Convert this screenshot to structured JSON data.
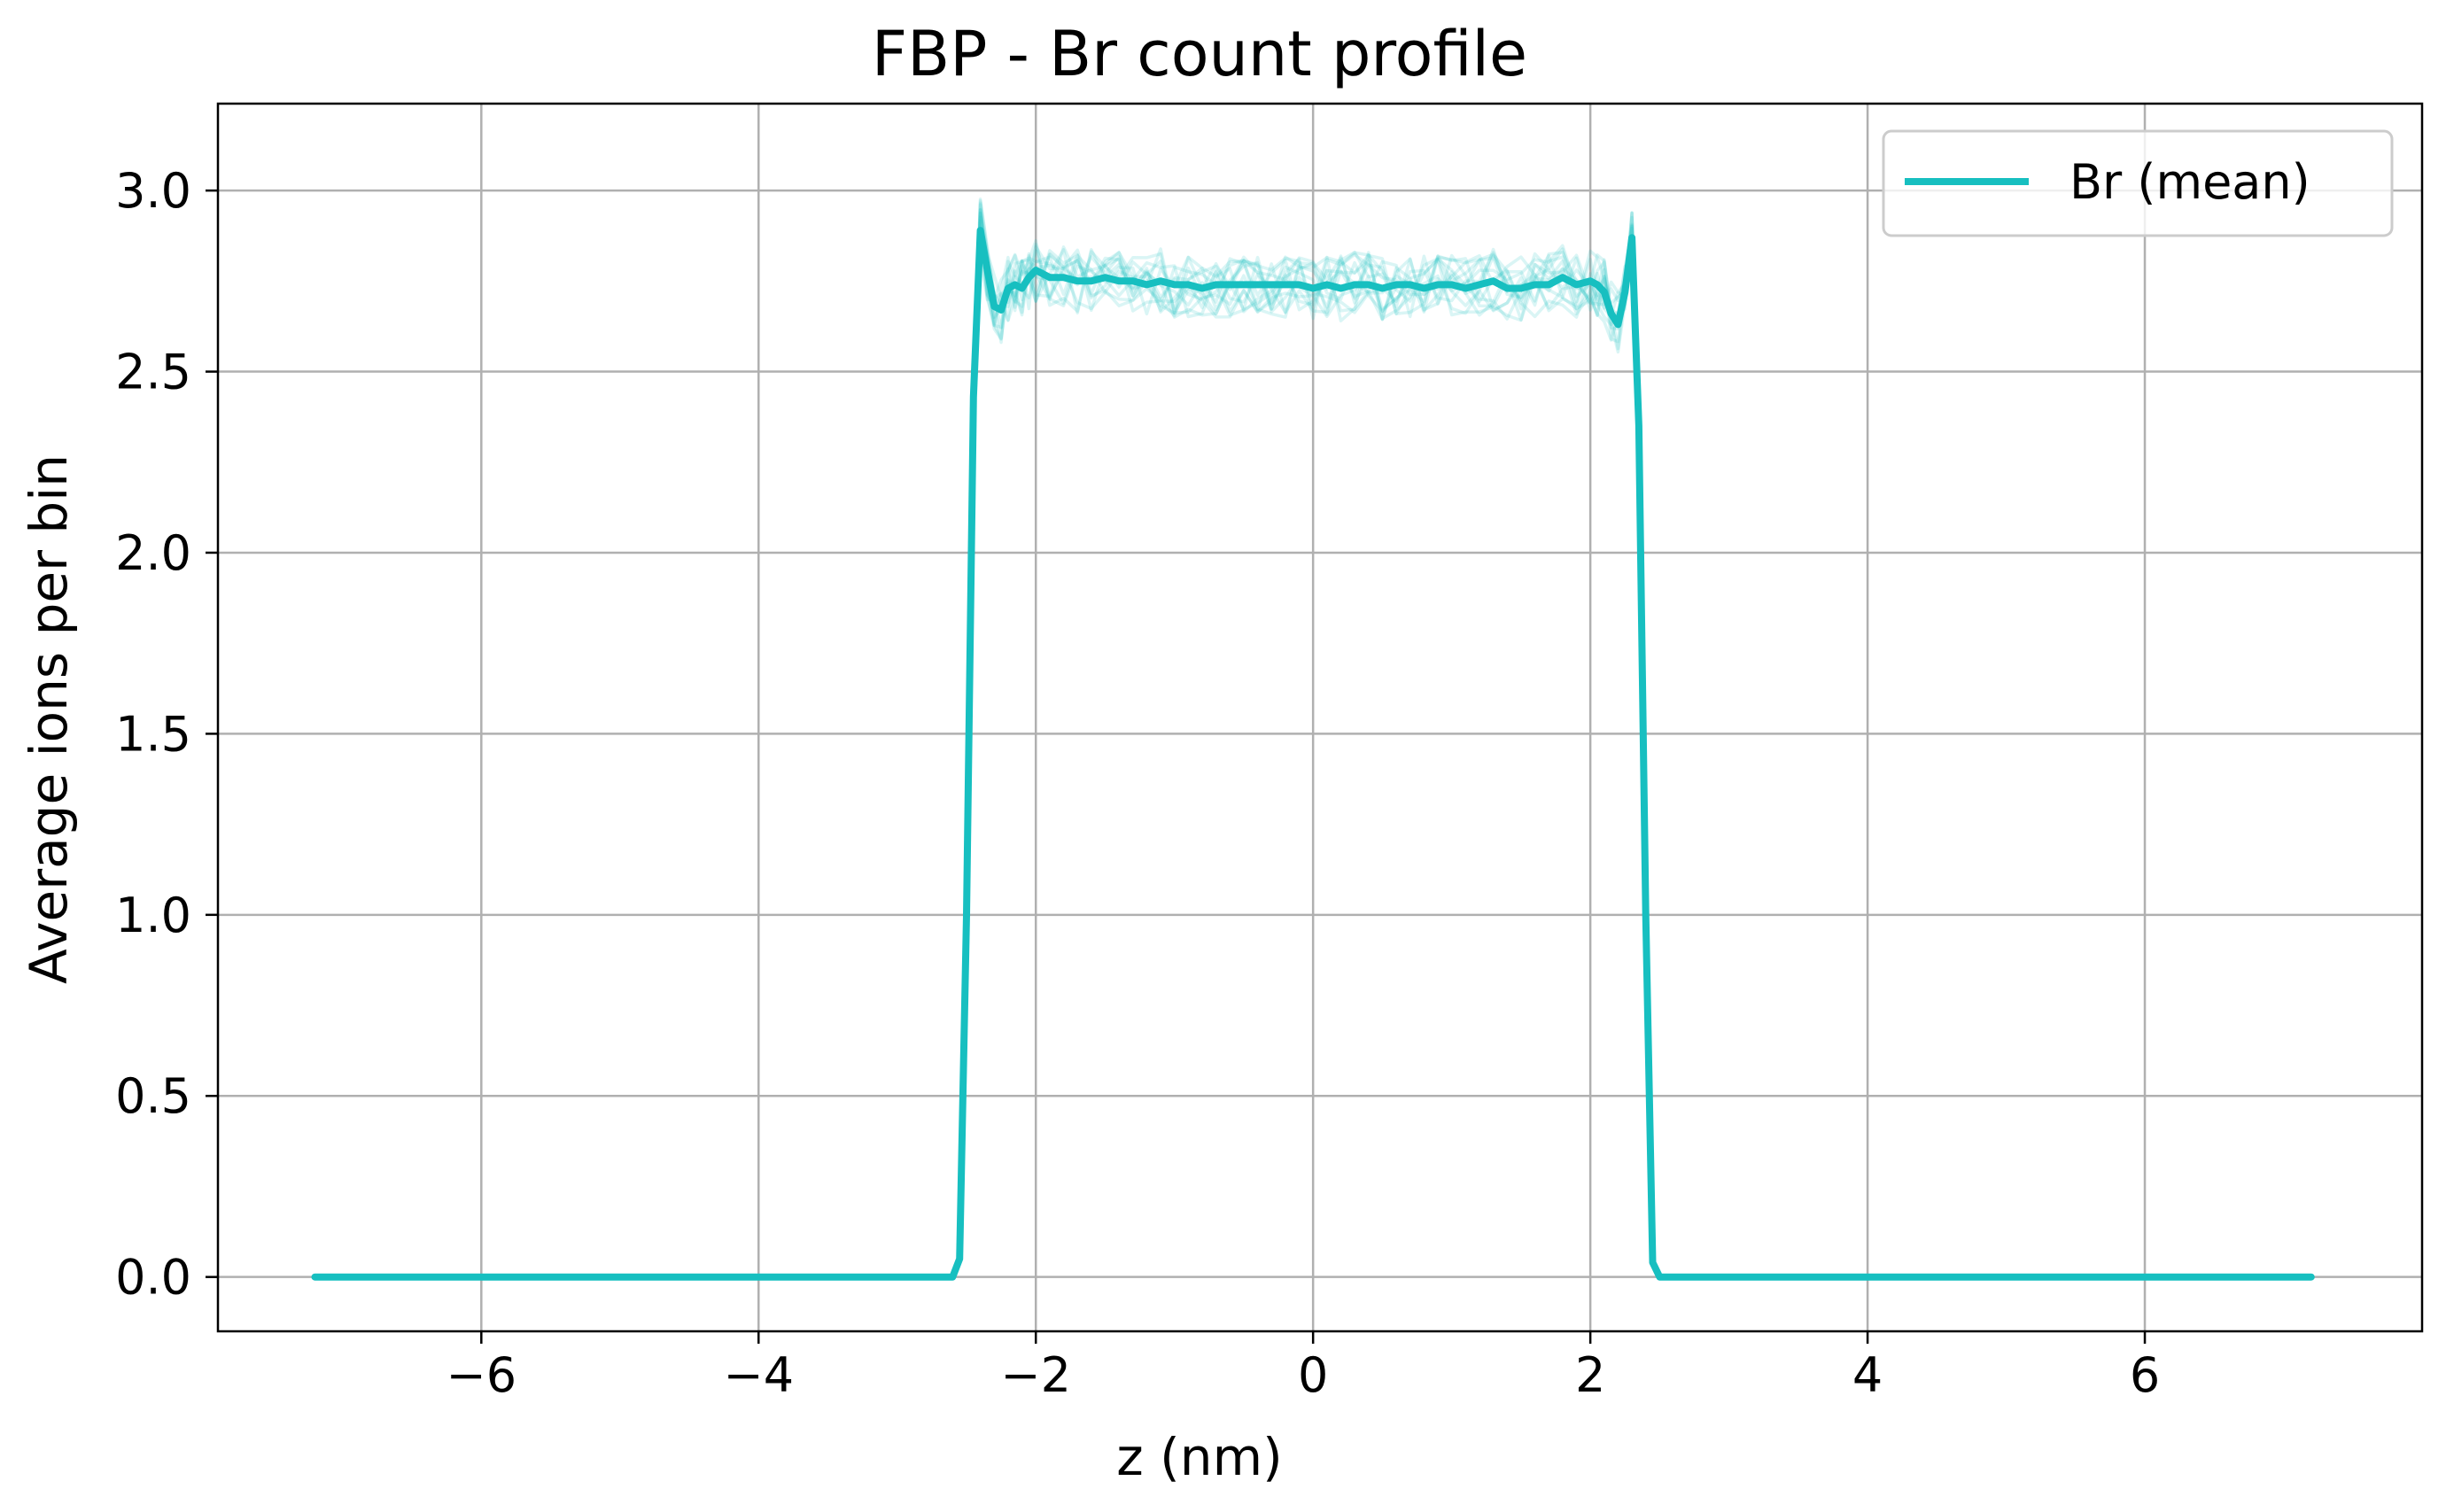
{
  "chart_data": {
    "type": "line",
    "title": "FBP - Br count profile",
    "xlabel": "z (nm)",
    "ylabel": "Average ions per bin",
    "xlim": [
      -7.9,
      8.0
    ],
    "ylim": [
      -0.15,
      3.24
    ],
    "x_ticks": [
      -6,
      -4,
      -2,
      0,
      2,
      4,
      6
    ],
    "x_tick_labels": [
      "−6",
      "−4",
      "−2",
      "0",
      "2",
      "4",
      "6"
    ],
    "y_ticks": [
      0.0,
      0.5,
      1.0,
      1.5,
      2.0,
      2.5,
      3.0
    ],
    "y_tick_labels": [
      "0.0",
      "0.5",
      "1.0",
      "1.5",
      "2.0",
      "2.5",
      "3.0"
    ],
    "grid": true,
    "legend": {
      "position": "top-right",
      "entries": [
        "Br (mean)"
      ]
    },
    "colors": {
      "series": "#17bfc0",
      "grid": "#b0b0b0",
      "axes": "#000000"
    },
    "series": [
      {
        "name": "Br (mean)",
        "x": [
          -7.2,
          -2.6,
          -2.55,
          -2.5,
          -2.45,
          -2.4,
          -2.35,
          -2.3,
          -2.25,
          -2.2,
          -2.15,
          -2.1,
          -2.05,
          -2.0,
          -1.9,
          -1.8,
          -1.7,
          -1.6,
          -1.5,
          -1.4,
          -1.3,
          -1.2,
          -1.1,
          -1.0,
          -0.9,
          -0.8,
          -0.7,
          -0.6,
          -0.5,
          -0.4,
          -0.3,
          -0.2,
          -0.1,
          0.0,
          0.1,
          0.2,
          0.3,
          0.4,
          0.5,
          0.6,
          0.7,
          0.8,
          0.9,
          1.0,
          1.1,
          1.2,
          1.3,
          1.4,
          1.5,
          1.6,
          1.7,
          1.8,
          1.9,
          2.0,
          2.05,
          2.1,
          2.15,
          2.2,
          2.25,
          2.3,
          2.35,
          2.4,
          2.45,
          2.5,
          2.55,
          2.6,
          7.2
        ],
        "y": [
          0.0,
          0.0,
          0.05,
          1.0,
          2.43,
          2.89,
          2.78,
          2.68,
          2.67,
          2.73,
          2.74,
          2.73,
          2.76,
          2.78,
          2.76,
          2.76,
          2.75,
          2.75,
          2.76,
          2.75,
          2.75,
          2.74,
          2.75,
          2.74,
          2.74,
          2.73,
          2.74,
          2.74,
          2.74,
          2.74,
          2.74,
          2.74,
          2.74,
          2.73,
          2.74,
          2.73,
          2.74,
          2.74,
          2.73,
          2.74,
          2.74,
          2.73,
          2.74,
          2.74,
          2.73,
          2.74,
          2.75,
          2.73,
          2.73,
          2.74,
          2.74,
          2.76,
          2.74,
          2.75,
          2.74,
          2.72,
          2.66,
          2.63,
          2.72,
          2.87,
          2.35,
          1.0,
          0.04,
          0.0,
          0.0,
          0.0,
          0.0
        ]
      }
    ]
  }
}
